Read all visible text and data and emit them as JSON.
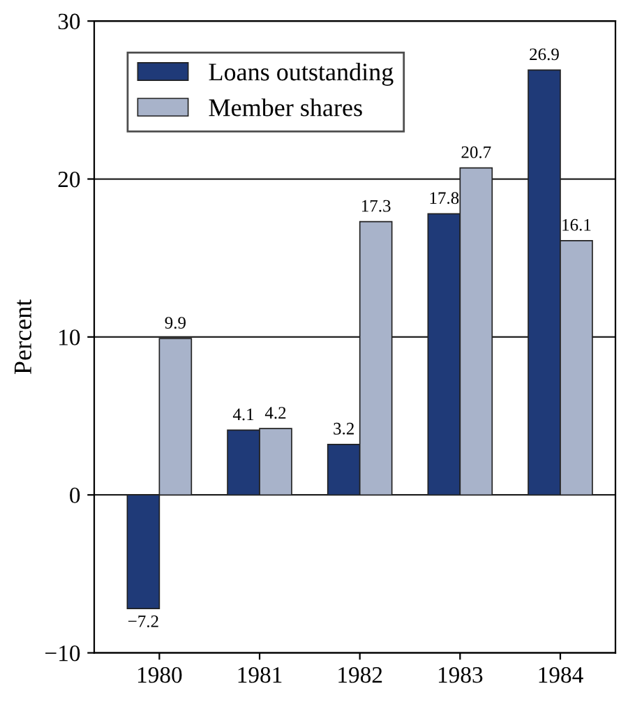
{
  "chart_data": {
    "type": "bar",
    "ylabel": "Percent",
    "categories": [
      "1980",
      "1981",
      "1982",
      "1983",
      "1984"
    ],
    "series": [
      {
        "name": "Loans outstanding",
        "color": "#1f3a78",
        "values": [
          -7.2,
          4.1,
          3.2,
          17.8,
          26.9
        ]
      },
      {
        "name": "Member shares",
        "color": "#a8b3ca",
        "values": [
          9.9,
          4.2,
          17.3,
          20.7,
          16.1
        ]
      }
    ],
    "ylim": [
      -10,
      30
    ],
    "yticks": [
      {
        "value": -10,
        "label": "−10"
      },
      0,
      10,
      20,
      30
    ],
    "grid": "y",
    "legend": "top left",
    "data_labels": true
  }
}
